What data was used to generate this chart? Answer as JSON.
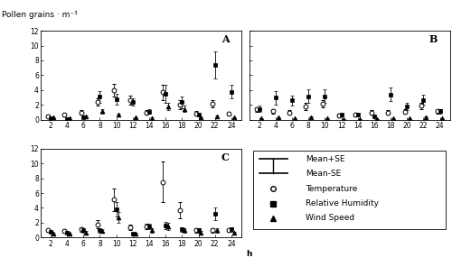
{
  "hours": [
    2,
    4,
    6,
    8,
    10,
    12,
    14,
    16,
    18,
    20,
    22,
    24
  ],
  "panel_A": {
    "label": "A",
    "temp_mean": [
      0.5,
      0.7,
      1.0,
      2.4,
      4.0,
      2.7,
      1.0,
      3.7,
      2.0,
      0.9,
      2.2,
      0.8
    ],
    "temp_se": [
      0.2,
      0.2,
      0.3,
      0.5,
      0.8,
      0.6,
      0.3,
      1.0,
      0.6,
      0.3,
      0.5,
      0.2
    ],
    "rh_mean": [
      0.2,
      0.1,
      0.3,
      3.1,
      2.8,
      2.4,
      1.1,
      3.5,
      2.4,
      0.7,
      7.4,
      3.8
    ],
    "rh_se": [
      0.1,
      0.05,
      0.1,
      0.8,
      0.7,
      0.5,
      0.3,
      1.2,
      0.8,
      0.2,
      1.8,
      0.9
    ],
    "ws_mean": [
      0.3,
      0.2,
      0.5,
      1.2,
      0.7,
      0.3,
      0.2,
      1.8,
      1.5,
      0.3,
      0.5,
      0.3
    ],
    "ws_se": [
      0.1,
      0.1,
      0.1,
      0.3,
      0.2,
      0.1,
      0.1,
      0.5,
      0.4,
      0.1,
      0.1,
      0.1
    ]
  },
  "panel_B": {
    "label": "B",
    "temp_mean": [
      1.4,
      1.2,
      1.0,
      1.8,
      2.2,
      0.6,
      0.7,
      1.0,
      1.0,
      1.1,
      1.9,
      1.2
    ],
    "temp_se": [
      0.3,
      0.3,
      0.3,
      0.5,
      0.5,
      0.2,
      0.2,
      0.3,
      0.3,
      0.3,
      0.4,
      0.3
    ],
    "rh_mean": [
      1.5,
      3.0,
      2.6,
      3.2,
      3.2,
      0.7,
      0.7,
      0.5,
      3.4,
      1.8,
      2.7,
      1.2
    ],
    "rh_se": [
      0.4,
      0.9,
      0.7,
      0.9,
      0.9,
      0.2,
      0.2,
      0.15,
      0.9,
      0.5,
      0.7,
      0.3
    ],
    "ws_mean": [
      0.2,
      0.3,
      0.2,
      0.4,
      0.2,
      0.1,
      0.1,
      0.1,
      0.2,
      0.2,
      0.4,
      0.2
    ],
    "ws_se": [
      0.05,
      0.1,
      0.05,
      0.1,
      0.05,
      0.03,
      0.03,
      0.03,
      0.05,
      0.05,
      0.1,
      0.05
    ]
  },
  "panel_C": {
    "label": "C",
    "temp_mean": [
      1.0,
      0.9,
      1.1,
      1.8,
      5.1,
      1.4,
      1.5,
      7.5,
      3.7,
      1.0,
      1.0,
      1.0
    ],
    "temp_se": [
      0.2,
      0.2,
      0.3,
      0.5,
      1.5,
      0.4,
      0.4,
      2.7,
      1.1,
      0.3,
      0.3,
      0.2
    ],
    "rh_mean": [
      0.8,
      0.7,
      1.0,
      1.0,
      3.8,
      0.5,
      1.5,
      1.6,
      1.1,
      1.0,
      3.2,
      1.1
    ],
    "rh_se": [
      0.2,
      0.2,
      0.3,
      0.3,
      1.0,
      0.15,
      0.4,
      0.5,
      0.3,
      0.3,
      0.8,
      0.3
    ],
    "ws_mean": [
      0.5,
      0.5,
      0.7,
      0.9,
      2.7,
      0.5,
      1.0,
      1.5,
      1.0,
      0.7,
      1.0,
      0.6
    ],
    "ws_se": [
      0.1,
      0.1,
      0.2,
      0.3,
      0.7,
      0.1,
      0.3,
      0.5,
      0.3,
      0.2,
      0.3,
      0.15
    ]
  },
  "ylim": [
    0,
    12
  ],
  "yticks": [
    0,
    2,
    4,
    6,
    8,
    10,
    12
  ],
  "hours_labels": [
    "2",
    "4",
    "6",
    "8",
    "10",
    "12",
    "14",
    "16",
    "18",
    "20",
    "22",
    "24"
  ],
  "ylabel": "Pollen grains · m⁻³"
}
